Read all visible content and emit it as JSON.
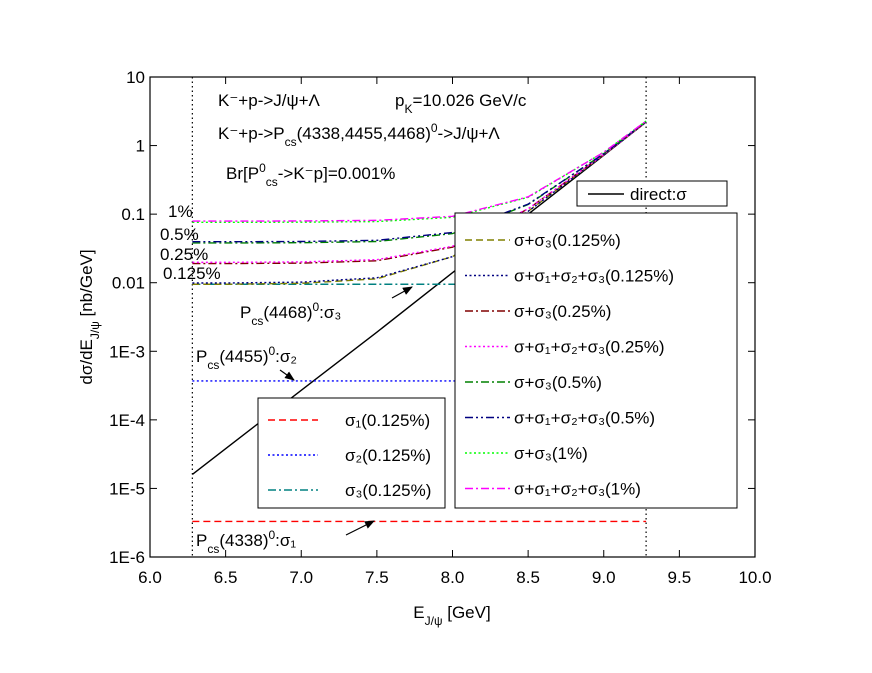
{
  "chart_data": {
    "type": "line",
    "xlabel": {
      "parts": [
        {
          "text": "E"
        },
        {
          "text": "J/ψ",
          "shift": "sub"
        },
        {
          "text": " [GeV]"
        }
      ]
    },
    "ylabel": {
      "parts": [
        {
          "text": "dσ/dE"
        },
        {
          "text": "J/ψ",
          "shift": "sub"
        },
        {
          "text": " [nb/GeV]"
        }
      ]
    },
    "xlim": [
      6,
      10
    ],
    "xticks": [
      {
        "value": 6,
        "label": "6.0"
      },
      {
        "value": 6.5,
        "label": "6.5"
      },
      {
        "value": 7,
        "label": "7.0"
      },
      {
        "value": 7.5,
        "label": "7.5"
      },
      {
        "value": 8,
        "label": "8.0"
      },
      {
        "value": 8.5,
        "label": "8.5"
      },
      {
        "value": 9,
        "label": "9.0"
      },
      {
        "value": 9.5,
        "label": "9.5"
      },
      {
        "value": 10,
        "label": "10.0"
      }
    ],
    "ylim": [
      1e-06,
      10
    ],
    "yscale": "log",
    "yticks": [
      10,
      1,
      0.1,
      0.01,
      {
        "value": 0.001,
        "label": "1E-3"
      },
      {
        "value": 0.0001,
        "label": "1E-4"
      },
      {
        "value": 1e-05,
        "label": "1E-5"
      },
      {
        "value": 1e-06,
        "label": "1E-6"
      }
    ],
    "vlines": [
      6.28,
      9.28
    ],
    "series": [
      {
        "name": "direct:σ",
        "color": "#000000",
        "dash": "solid",
        "x": [
          6.28,
          6.5,
          7.0,
          7.5,
          8.0,
          8.5,
          9.0,
          9.28
        ],
        "values": [
          1.6e-05,
          3.8e-05,
          0.00027,
          0.0019,
          0.014,
          0.1,
          0.72,
          2.2
        ]
      },
      {
        "name": "σ₁(0.125%)",
        "color": "#ff0000",
        "dash": "dash",
        "x": [
          6.28,
          9.28
        ],
        "values": [
          3.3e-06,
          3.3e-06
        ]
      },
      {
        "name": "σ₂(0.125%)",
        "color": "#0000ff",
        "dash": "dot",
        "x": [
          6.28,
          9.28
        ],
        "values": [
          0.00037,
          0.00037
        ]
      },
      {
        "name": "σ₃(0.125%)",
        "color": "#008080",
        "dash": "dashdot",
        "x": [
          6.28,
          9.28
        ],
        "values": [
          0.0095,
          0.0095
        ]
      },
      {
        "name": "σ+σ₃(0.125%)",
        "color": "#808000",
        "dash": "dash",
        "x": [
          6.28,
          6.5,
          7.0,
          7.5,
          8.0,
          8.5,
          9.0,
          9.28
        ],
        "values": [
          0.0095,
          0.0095,
          0.0098,
          0.0114,
          0.024,
          0.11,
          0.73,
          2.2
        ]
      },
      {
        "name": "σ+σ₁+σ₂+σ₃(0.125%)",
        "color": "#000080",
        "dash": "dot",
        "x": [
          6.28,
          6.5,
          7.0,
          7.5,
          8.0,
          8.5,
          9.0,
          9.28
        ],
        "values": [
          0.0099,
          0.0099,
          0.0102,
          0.0118,
          0.024,
          0.11,
          0.73,
          2.2
        ]
      },
      {
        "name": "σ+σ₃(0.25%)",
        "color": "#800000",
        "dash": "dashdot",
        "x": [
          6.28,
          6.5,
          7.0,
          7.5,
          8.0,
          8.5,
          9.0,
          9.28
        ],
        "values": [
          0.019,
          0.019,
          0.0193,
          0.0209,
          0.033,
          0.119,
          0.74,
          2.2
        ]
      },
      {
        "name": "σ+σ₁+σ₂+σ₃(0.25%)",
        "color": "#ff00ff",
        "dash": "dot",
        "x": [
          6.28,
          6.5,
          7.0,
          7.5,
          8.0,
          8.5,
          9.0,
          9.28
        ],
        "values": [
          0.0198,
          0.0198,
          0.0201,
          0.0217,
          0.034,
          0.12,
          0.74,
          2.2
        ]
      },
      {
        "name": "σ+σ₃(0.5%)",
        "color": "#008000",
        "dash": "dashdot",
        "x": [
          6.28,
          6.5,
          7.0,
          7.5,
          8.0,
          8.5,
          9.0,
          9.28
        ],
        "values": [
          0.038,
          0.038,
          0.0383,
          0.0399,
          0.052,
          0.138,
          0.76,
          2.24
        ]
      },
      {
        "name": "σ+σ₁+σ₂+σ₃(0.5%)",
        "color": "#000080",
        "dash": "dashdotdot",
        "x": [
          6.28,
          6.5,
          7.0,
          7.5,
          8.0,
          8.5,
          9.0,
          9.28
        ],
        "values": [
          0.0396,
          0.0396,
          0.0399,
          0.0415,
          0.054,
          0.14,
          0.76,
          2.24
        ]
      },
      {
        "name": "σ+σ₃(1%)",
        "color": "#00ff00",
        "dash": "dot",
        "x": [
          6.28,
          6.5,
          7.0,
          7.5,
          8.0,
          8.5,
          9.0,
          9.28
        ],
        "values": [
          0.076,
          0.076,
          0.0763,
          0.0779,
          0.09,
          0.176,
          0.8,
          2.28
        ]
      },
      {
        "name": "σ+σ₁+σ₂+σ₃(1%)",
        "color": "#ff00ff",
        "dash": "dashdot",
        "x": [
          6.28,
          6.5,
          7.0,
          7.5,
          8.0,
          8.5,
          9.0,
          9.28
        ],
        "values": [
          0.0792,
          0.0792,
          0.0795,
          0.0811,
          0.093,
          0.179,
          0.8,
          2.28
        ]
      }
    ],
    "annotations": [
      {
        "parts": [
          {
            "text": "K⁻+p->J/ψ+Λ"
          }
        ]
      },
      {
        "parts": [
          {
            "text": "p"
          },
          {
            "text": "K",
            "shift": "sub"
          },
          {
            "text": "=10.026 GeV/c"
          }
        ]
      },
      {
        "parts": [
          {
            "text": "K⁻+p->P"
          },
          {
            "text": "cs",
            "shift": "sub"
          },
          {
            "text": "(4338,4455,4468)"
          },
          {
            "text": "0",
            "shift": "sup"
          },
          {
            "text": "->J/ψ+Λ"
          }
        ]
      },
      {
        "parts": [
          {
            "text": "Br[P"
          },
          {
            "text": "0",
            "shift": "sup"
          },
          {
            "text": "cs",
            "shift": "sub"
          },
          {
            "text": "->K⁻p]=0.001%"
          }
        ]
      },
      {
        "parts": [
          {
            "text": "P"
          },
          {
            "text": "cs",
            "shift": "sub"
          },
          {
            "text": "(4468)"
          },
          {
            "text": "0",
            "shift": "sup"
          },
          {
            "text": ":σ₃"
          }
        ]
      },
      {
        "parts": [
          {
            "text": "P"
          },
          {
            "text": "cs",
            "shift": "sub"
          },
          {
            "text": "(4455)"
          },
          {
            "text": "0",
            "shift": "sup"
          },
          {
            "text": ":σ₂"
          }
        ]
      },
      {
        "parts": [
          {
            "text": "P"
          },
          {
            "text": "cs",
            "shift": "sub"
          },
          {
            "text": "(4338)"
          },
          {
            "text": "0",
            "shift": "sup"
          },
          {
            "text": ":σ₁"
          }
        ]
      },
      {
        "parts": [
          {
            "text": "1%"
          }
        ]
      },
      {
        "parts": [
          {
            "text": "0.5%"
          }
        ]
      },
      {
        "parts": [
          {
            "text": "0.25%"
          }
        ]
      },
      {
        "parts": [
          {
            "text": "0.125%"
          }
        ]
      }
    ]
  }
}
